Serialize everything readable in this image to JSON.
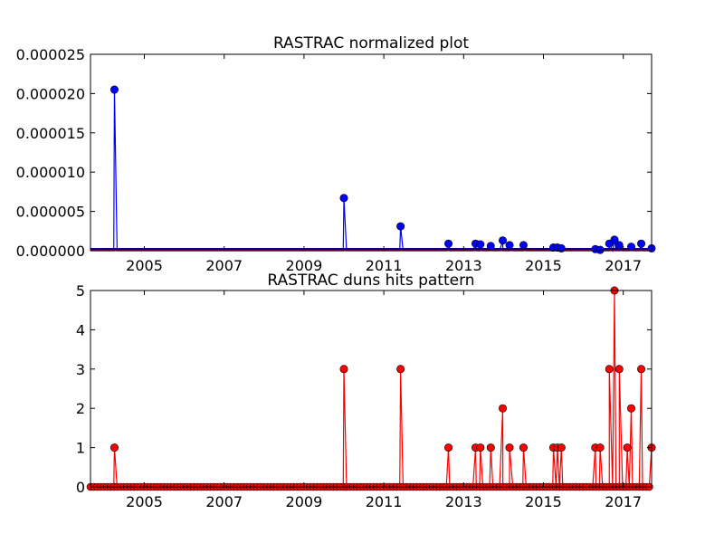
{
  "chart_data": [
    {
      "type": "line",
      "title": "RASTRAC normalized plot",
      "xlabel": "",
      "ylabel": "",
      "x_ticks": [
        "2005",
        "2007",
        "2009",
        "2011",
        "2013",
        "2015",
        "2017"
      ],
      "y_ticks": [
        "0.000000",
        "0.000005",
        "0.000010",
        "0.000015",
        "0.000020",
        "0.000025"
      ],
      "xlim": [
        2003.65,
        2017.71
      ],
      "ylim": [
        0,
        2.5e-05
      ],
      "grid": false,
      "series": [
        {
          "color": "#0000ff",
          "marker": "circle",
          "points": [
            [
              2004.25,
              2.05e-05
            ],
            [
              2010.0,
              6.7e-06
            ],
            [
              2011.42,
              3.1e-06
            ],
            [
              2012.62,
              9e-07
            ],
            [
              2013.3,
              9e-07
            ],
            [
              2013.42,
              8e-07
            ],
            [
              2013.68,
              6e-07
            ],
            [
              2013.98,
              1.3e-06
            ],
            [
              2014.15,
              7e-07
            ],
            [
              2014.5,
              7e-07
            ],
            [
              2015.25,
              4e-07
            ],
            [
              2015.35,
              4e-07
            ],
            [
              2015.45,
              3e-07
            ],
            [
              2016.3,
              2e-07
            ],
            [
              2016.42,
              1e-07
            ],
            [
              2016.65,
              9e-07
            ],
            [
              2016.78,
              1.4e-06
            ],
            [
              2016.9,
              7e-07
            ],
            [
              2017.2,
              5e-07
            ],
            [
              2017.45,
              9e-07
            ],
            [
              2017.71,
              3e-07
            ]
          ]
        }
      ],
      "baseline_color": "#ff0000"
    },
    {
      "type": "line",
      "title": "RASTRAC duns hits pattern",
      "xlabel": "",
      "ylabel": "",
      "x_ticks": [
        "2005",
        "2007",
        "2009",
        "2011",
        "2013",
        "2015",
        "2017"
      ],
      "y_ticks": [
        "0",
        "1",
        "2",
        "3",
        "4",
        "5"
      ],
      "xlim": [
        2003.65,
        2017.71
      ],
      "ylim": [
        0,
        5
      ],
      "grid": false,
      "series": [
        {
          "color": "#ff0000",
          "marker": "circle",
          "monthly_baseline_zero": true,
          "points": [
            [
              2004.25,
              1
            ],
            [
              2010.0,
              3
            ],
            [
              2011.42,
              3
            ],
            [
              2012.62,
              1
            ],
            [
              2013.3,
              1
            ],
            [
              2013.42,
              1
            ],
            [
              2013.68,
              1
            ],
            [
              2013.98,
              2
            ],
            [
              2014.15,
              1
            ],
            [
              2014.5,
              1
            ],
            [
              2015.25,
              1
            ],
            [
              2015.35,
              1
            ],
            [
              2015.45,
              1
            ],
            [
              2016.3,
              1
            ],
            [
              2016.42,
              1
            ],
            [
              2016.65,
              3
            ],
            [
              2016.78,
              5
            ],
            [
              2016.9,
              3
            ],
            [
              2017.1,
              1
            ],
            [
              2017.2,
              2
            ],
            [
              2017.45,
              3
            ],
            [
              2017.71,
              1
            ]
          ]
        }
      ]
    }
  ]
}
